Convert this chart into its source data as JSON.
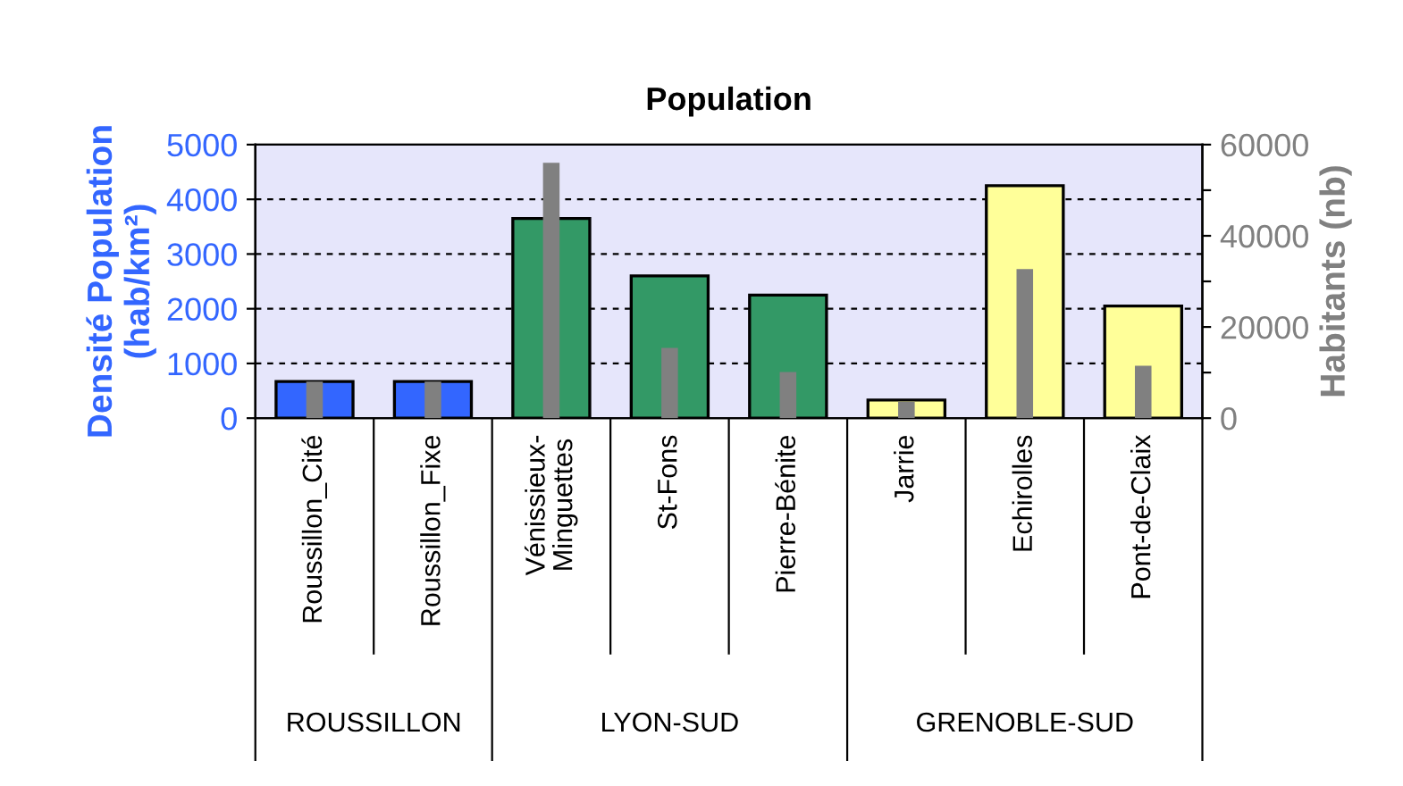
{
  "chart_data": {
    "type": "bar",
    "title": "Population",
    "ylabel": "Densité Population\n(hab/km²)",
    "y2label": "Habitants (nb)",
    "categories": [
      "Roussillon_Cité",
      "Roussillon_Fixe",
      "Vénissieux-\nMinguettes",
      "St-Fons",
      "Pierre-Bénite",
      "Jarrie",
      "Echirolles",
      "Pont-de-Claix"
    ],
    "series": [
      {
        "colors": [
          "#3366ff",
          "#3366ff",
          "#339966",
          "#339966",
          "#339966",
          "#ffff99",
          "#ffff99",
          "#ffff99"
        ],
        "values": [
          670,
          670,
          3650,
          2600,
          2250,
          330,
          4250,
          2050
        ]
      },
      {
        "color": "#808080",
        "axis": "y2",
        "values": [
          8000,
          8000,
          56000,
          15400,
          10100,
          3600,
          32700,
          11500
        ]
      }
    ],
    "annotations": [
      "ROUSSILLON",
      "LYON-SUD",
      "GRENOBLE-SUD"
    ],
    "ylim": [
      0,
      5000
    ],
    "yticks": [
      0,
      1000,
      2000,
      3000,
      4000,
      5000
    ],
    "y2lim": [
      0,
      60000
    ],
    "y2ticks": [
      0,
      {
        "value": 10000,
        "label": null
      },
      20000,
      {
        "value": 30000,
        "label": null
      },
      40000,
      {
        "value": 50000,
        "label": null
      },
      60000
    ],
    "grid": "y",
    "legend": false
  }
}
